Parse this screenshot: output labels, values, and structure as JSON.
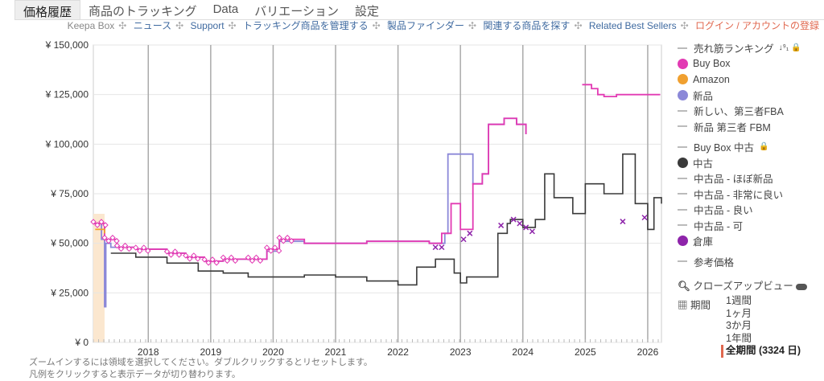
{
  "tabs": [
    "価格履歴",
    "商品のトラッキング",
    "Data",
    "バリエーション",
    "設定"
  ],
  "sublinks": {
    "keepa_box": "Keepa Box",
    "news": "ニュース",
    "support": "Support",
    "tracking": "トラッキング商品を管理する",
    "finder": "製品ファインダー",
    "related": "関連する商品を探す",
    "best": "Related Best Sellers",
    "login": "ログイン / アカウントの登録"
  },
  "legend": [
    {
      "label": "売れ筋ランキング",
      "type": "dash",
      "extra": "↓⁹₁ 🔒"
    },
    {
      "label": "Buy Box",
      "type": "dot",
      "color": "#e23ab3"
    },
    {
      "label": "Amazon",
      "type": "dot",
      "color": "#f0a030"
    },
    {
      "label": "新品",
      "type": "dot",
      "color": "#8b88d8"
    },
    {
      "label": "新しい、第三者FBA",
      "type": "dash"
    },
    {
      "label": "新品 第三者 FBM",
      "type": "dash"
    },
    {
      "label": "Buy Box 中古",
      "type": "dash",
      "extra": "🔒"
    },
    {
      "label": "中古",
      "type": "dot",
      "color": "#3a3a3a"
    },
    {
      "label": "中古品 - ほぼ新品",
      "type": "dash"
    },
    {
      "label": "中古品 - 非常に良い",
      "type": "dash"
    },
    {
      "label": "中古品 - 良い",
      "type": "dash"
    },
    {
      "label": "中古品 - 可",
      "type": "dash"
    },
    {
      "label": "倉庫",
      "type": "dot",
      "color": "#8e24aa"
    },
    {
      "label": "参考価格",
      "type": "dash"
    }
  ],
  "closeup": "クローズアップビュー",
  "period_label": "期間",
  "periods": [
    "1週間",
    "1ヶ月",
    "3か月",
    "1年間",
    "全期間 (3324 日)"
  ],
  "footer": [
    "ズームインするには領域を選択してください。ダブルクリックするとリセットします。",
    "凡例をクリックすると表示データが切り替わります。"
  ],
  "chart_data": {
    "type": "line",
    "xlim": [
      2017.12,
      2026.22
    ],
    "ylim": [
      0,
      150000
    ],
    "yticks": [
      0,
      25000,
      50000,
      75000,
      100000,
      125000,
      150000
    ],
    "ytick_labels": [
      "¥ 0",
      "¥ 25,000",
      "¥ 50,000",
      "¥ 75,000",
      "¥ 100,000",
      "¥ 125,000",
      "¥ 150,000"
    ],
    "xticks": [
      2018,
      2019,
      2020,
      2021,
      2022,
      2023,
      2024,
      2025,
      2026
    ],
    "xtick_labels": [
      "2018",
      "2019",
      "2020",
      "2021",
      "2022",
      "2023",
      "2024",
      "2025",
      "2026"
    ],
    "series": [
      {
        "name": "新品",
        "color": "#8b88d8",
        "x": [
          2017.12,
          2017.25,
          2017.3,
          2017.32,
          2017.4,
          2017.8,
          2018.3,
          2018.6,
          2018.9,
          2019.2,
          2019.6,
          2019.9,
          2020.1,
          2020.5,
          2021,
          2021.5,
          2022,
          2022.5,
          2022.75,
          2022.8,
          2023.2,
          2023.35,
          2023.45,
          2023.7,
          2023.9,
          2024.05
        ],
        "y": [
          60000,
          52000,
          18000,
          50000,
          48000,
          47000,
          45000,
          43000,
          41000,
          42000,
          42000,
          46000,
          51000,
          50000,
          50000,
          51000,
          51000,
          50000,
          55000,
          95000,
          80000,
          85000,
          110000,
          113000,
          110000,
          105000
        ]
      },
      {
        "name": "Buy Box",
        "color": "#e23ab3",
        "x": [
          2017.12,
          2017.3,
          2017.5,
          2017.8,
          2018.3,
          2018.6,
          2018.9,
          2019.2,
          2019.6,
          2019.9,
          2020.1,
          2020.5,
          2021,
          2021.5,
          2022,
          2022.5,
          2022.7,
          2022.85,
          2023.0,
          2023.2,
          2023.35,
          2023.45,
          2023.7,
          2023.9,
          2024.05
        ],
        "y": [
          60000,
          52000,
          48000,
          47000,
          45000,
          43000,
          41000,
          42000,
          42000,
          47000,
          52000,
          50000,
          50000,
          51000,
          51000,
          50000,
          55000,
          70000,
          57000,
          80000,
          85000,
          110000,
          113000,
          110000,
          105000
        ]
      },
      {
        "name": "Buy Box 2025",
        "color": "#e23ab3",
        "x": [
          2024.95,
          2025.1,
          2025.2,
          2025.3,
          2025.5,
          2026.2
        ],
        "y": [
          130000,
          128000,
          125000,
          124000,
          125000,
          125000
        ]
      },
      {
        "name": "Amazon",
        "color": "#f0a030",
        "x": [
          2017.15,
          2017.3
        ],
        "y": [
          57000,
          55000
        ]
      },
      {
        "name": "中古",
        "color": "#3a3a3a",
        "x": [
          2017.4,
          2017.8,
          2018.3,
          2018.8,
          2019.2,
          2019.6,
          2020,
          2020.5,
          2021,
          2021.5,
          2022,
          2022.3,
          2022.6,
          2022.9,
          2023.0,
          2023.1,
          2023.5,
          2023.6,
          2023.75,
          2023.8,
          2024.0,
          2024.2,
          2024.35,
          2024.5,
          2024.8,
          2025.0,
          2025.3,
          2025.6,
          2025.8,
          2026.0,
          2026.1,
          2026.22
        ],
        "y": [
          45000,
          43000,
          40000,
          36000,
          35000,
          33000,
          33000,
          34000,
          33000,
          31000,
          29000,
          38000,
          42000,
          35000,
          30000,
          33000,
          33000,
          55000,
          60000,
          62000,
          58000,
          62000,
          85000,
          73000,
          65000,
          80000,
          75000,
          95000,
          70000,
          57000,
          73000,
          70000
        ]
      },
      {
        "name": "倉庫",
        "color": "#8e24aa",
        "marker": "x",
        "x": [
          2022.6,
          2022.7,
          2023.05,
          2023.15,
          2023.65,
          2023.85,
          2023.95,
          2024.05,
          2024.15,
          2025.6,
          2025.95
        ],
        "y": [
          48000,
          48000,
          52000,
          55000,
          59000,
          62000,
          60000,
          58000,
          56000,
          61000,
          63000
        ]
      }
    ]
  }
}
